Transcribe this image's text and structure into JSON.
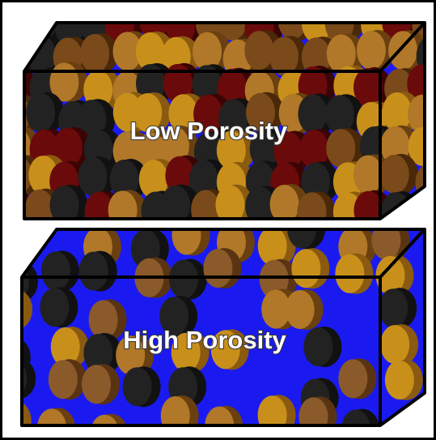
{
  "panels": [
    {
      "label": "Low Porosity"
    },
    {
      "label": "High Porosity"
    }
  ]
}
